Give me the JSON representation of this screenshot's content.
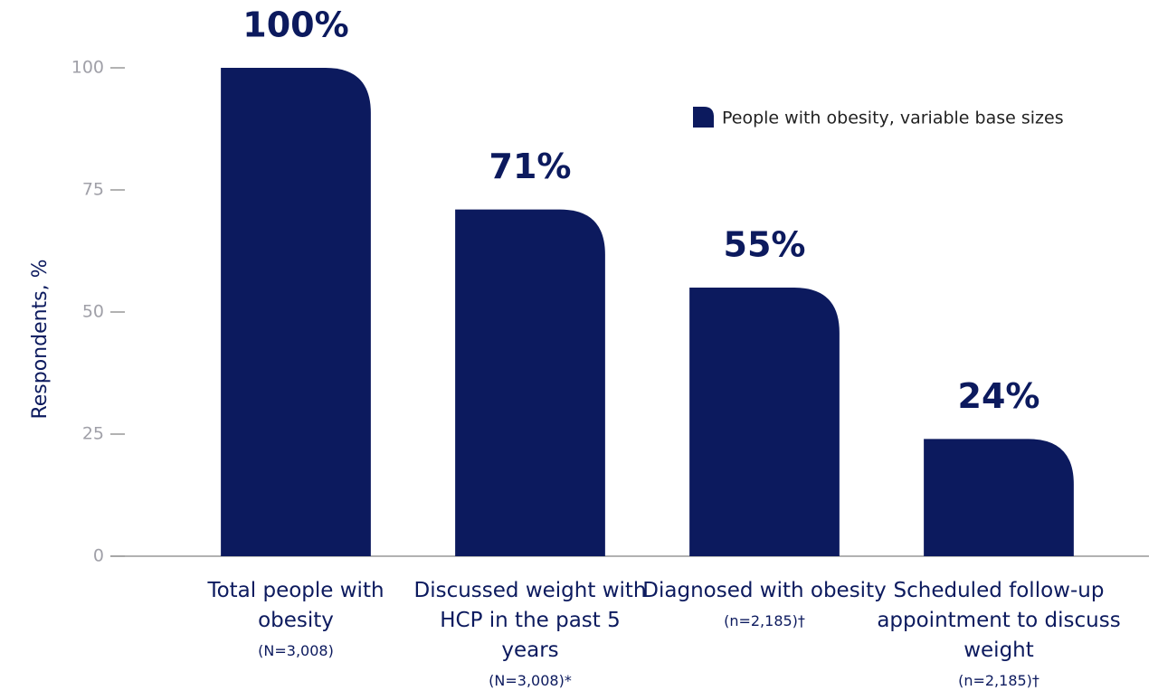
{
  "chart_data": {
    "type": "bar",
    "y_axis_label": "Respondents, %",
    "legend": "People with obesity, variable base sizes",
    "categories": [
      "Total people with obesity",
      "Discussed weight with HCP in the past 5 years",
      "Diagnosed with obesity",
      "Scheduled follow-up appointment to discuss weight"
    ],
    "base_sizes": [
      "(N=3,008)",
      "(N=3,008)*",
      "(n=2,185)†",
      "(n=2,185)†"
    ],
    "values": [
      100,
      71,
      55,
      24
    ],
    "value_labels": [
      "100%",
      "71%",
      "55%",
      "24%"
    ],
    "color": "#0c1a5e",
    "ylim": [
      0,
      100
    ],
    "yticks": [
      0,
      25,
      50,
      75,
      100
    ],
    "legend_position": "upper right"
  }
}
